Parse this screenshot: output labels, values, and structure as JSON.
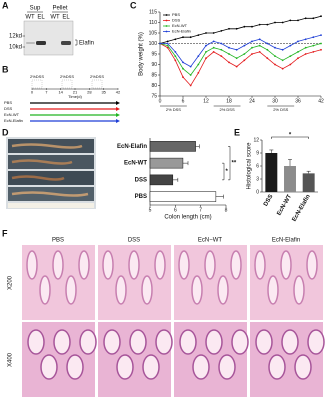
{
  "panels": {
    "labels": [
      "A",
      "B",
      "C",
      "D",
      "E",
      "F"
    ]
  },
  "blot": {
    "groups": [
      "Sup",
      "Pellet"
    ],
    "lanes": [
      "WT",
      "EL",
      "WT",
      "EL"
    ],
    "markers": [
      "12kd",
      "10kd"
    ],
    "band": "Elafin"
  },
  "timeline": {
    "treatments": [
      "2%DSS",
      "2%DSS",
      "2%DSS"
    ],
    "ticks": [
      "0",
      "7",
      "14",
      "21",
      "28",
      "35",
      "42"
    ],
    "axis_label": "Time(d)",
    "groups": [
      "PBS",
      "DSS",
      "EcN-WT",
      "EcN-Elafin"
    ]
  },
  "histology": {
    "columns": [
      "PBS",
      "DSS",
      "EcN−WT",
      "EcN-Elafin"
    ],
    "rows": [
      "X200",
      "X400"
    ]
  },
  "chart_data": [
    {
      "type": "line",
      "y_label": "Body weight (%)",
      "x": [
        0,
        2,
        4,
        6,
        8,
        10,
        12,
        14,
        16,
        18,
        20,
        22,
        24,
        26,
        28,
        30,
        32,
        34,
        36,
        38,
        40,
        42
      ],
      "xlim": [
        0,
        42
      ],
      "xticks": [
        0,
        6,
        12,
        18,
        24,
        30,
        36,
        42
      ],
      "ylim": [
        75,
        115
      ],
      "yticks": [
        75,
        80,
        85,
        90,
        95,
        100,
        105,
        110,
        115
      ],
      "reference_line": 100,
      "legend": "upper left",
      "annotations": [
        "2% DSS",
        "2% DSS",
        "2% DSS"
      ],
      "series": [
        {
          "name": "PBS",
          "color": "#000000",
          "values": [
            100,
            101,
            102,
            103,
            103,
            104,
            105,
            105,
            106,
            107,
            107,
            108,
            108,
            109,
            109,
            110,
            110,
            111,
            111,
            112,
            112,
            113
          ]
        },
        {
          "name": "DSS",
          "color": "#e41a1c",
          "values": [
            100,
            98,
            92,
            84,
            80,
            86,
            93,
            96,
            94,
            91,
            89,
            92,
            95,
            96,
            93,
            90,
            88,
            90,
            93,
            95,
            96,
            97
          ]
        },
        {
          "name": "EcN-WT",
          "color": "#22b522",
          "values": [
            100,
            99,
            94,
            88,
            85,
            90,
            96,
            98,
            97,
            95,
            93,
            95,
            98,
            99,
            97,
            94,
            92,
            94,
            96,
            98,
            99,
            100
          ]
        },
        {
          "name": "EcN-Elafin",
          "color": "#1f3fd6",
          "values": [
            100,
            100,
            96,
            91,
            89,
            94,
            99,
            101,
            100,
            98,
            97,
            99,
            101,
            102,
            100,
            98,
            97,
            99,
            101,
            102,
            103,
            104
          ]
        }
      ]
    },
    {
      "type": "hbar",
      "x_label": "Colon length (cm)",
      "categories": [
        "EcN-Elafin",
        "EcN-WT",
        "DSS",
        "PBS"
      ],
      "values": [
        6.8,
        6.3,
        5.9,
        7.6
      ],
      "errors": [
        0.15,
        0.2,
        0.2,
        0.3
      ],
      "colors": [
        "#666666",
        "#999999",
        "#444444",
        "#ffffff"
      ],
      "xlim": [
        5,
        8
      ],
      "xticks": [
        5,
        6,
        7,
        8
      ],
      "significance": [
        "*",
        "**"
      ]
    },
    {
      "type": "bar",
      "y_label": "Histological score",
      "categories": [
        "DSS",
        "EcN-WT",
        "EcN-Elafin"
      ],
      "values": [
        9,
        6,
        4.3
      ],
      "errors": [
        0.7,
        1.5,
        0.5
      ],
      "colors": [
        "#1a1a1a",
        "#8c8c8c",
        "#555555"
      ],
      "ylim": [
        0,
        12
      ],
      "yticks": [
        0,
        3,
        6,
        9,
        12
      ],
      "significance": [
        "*"
      ]
    }
  ]
}
